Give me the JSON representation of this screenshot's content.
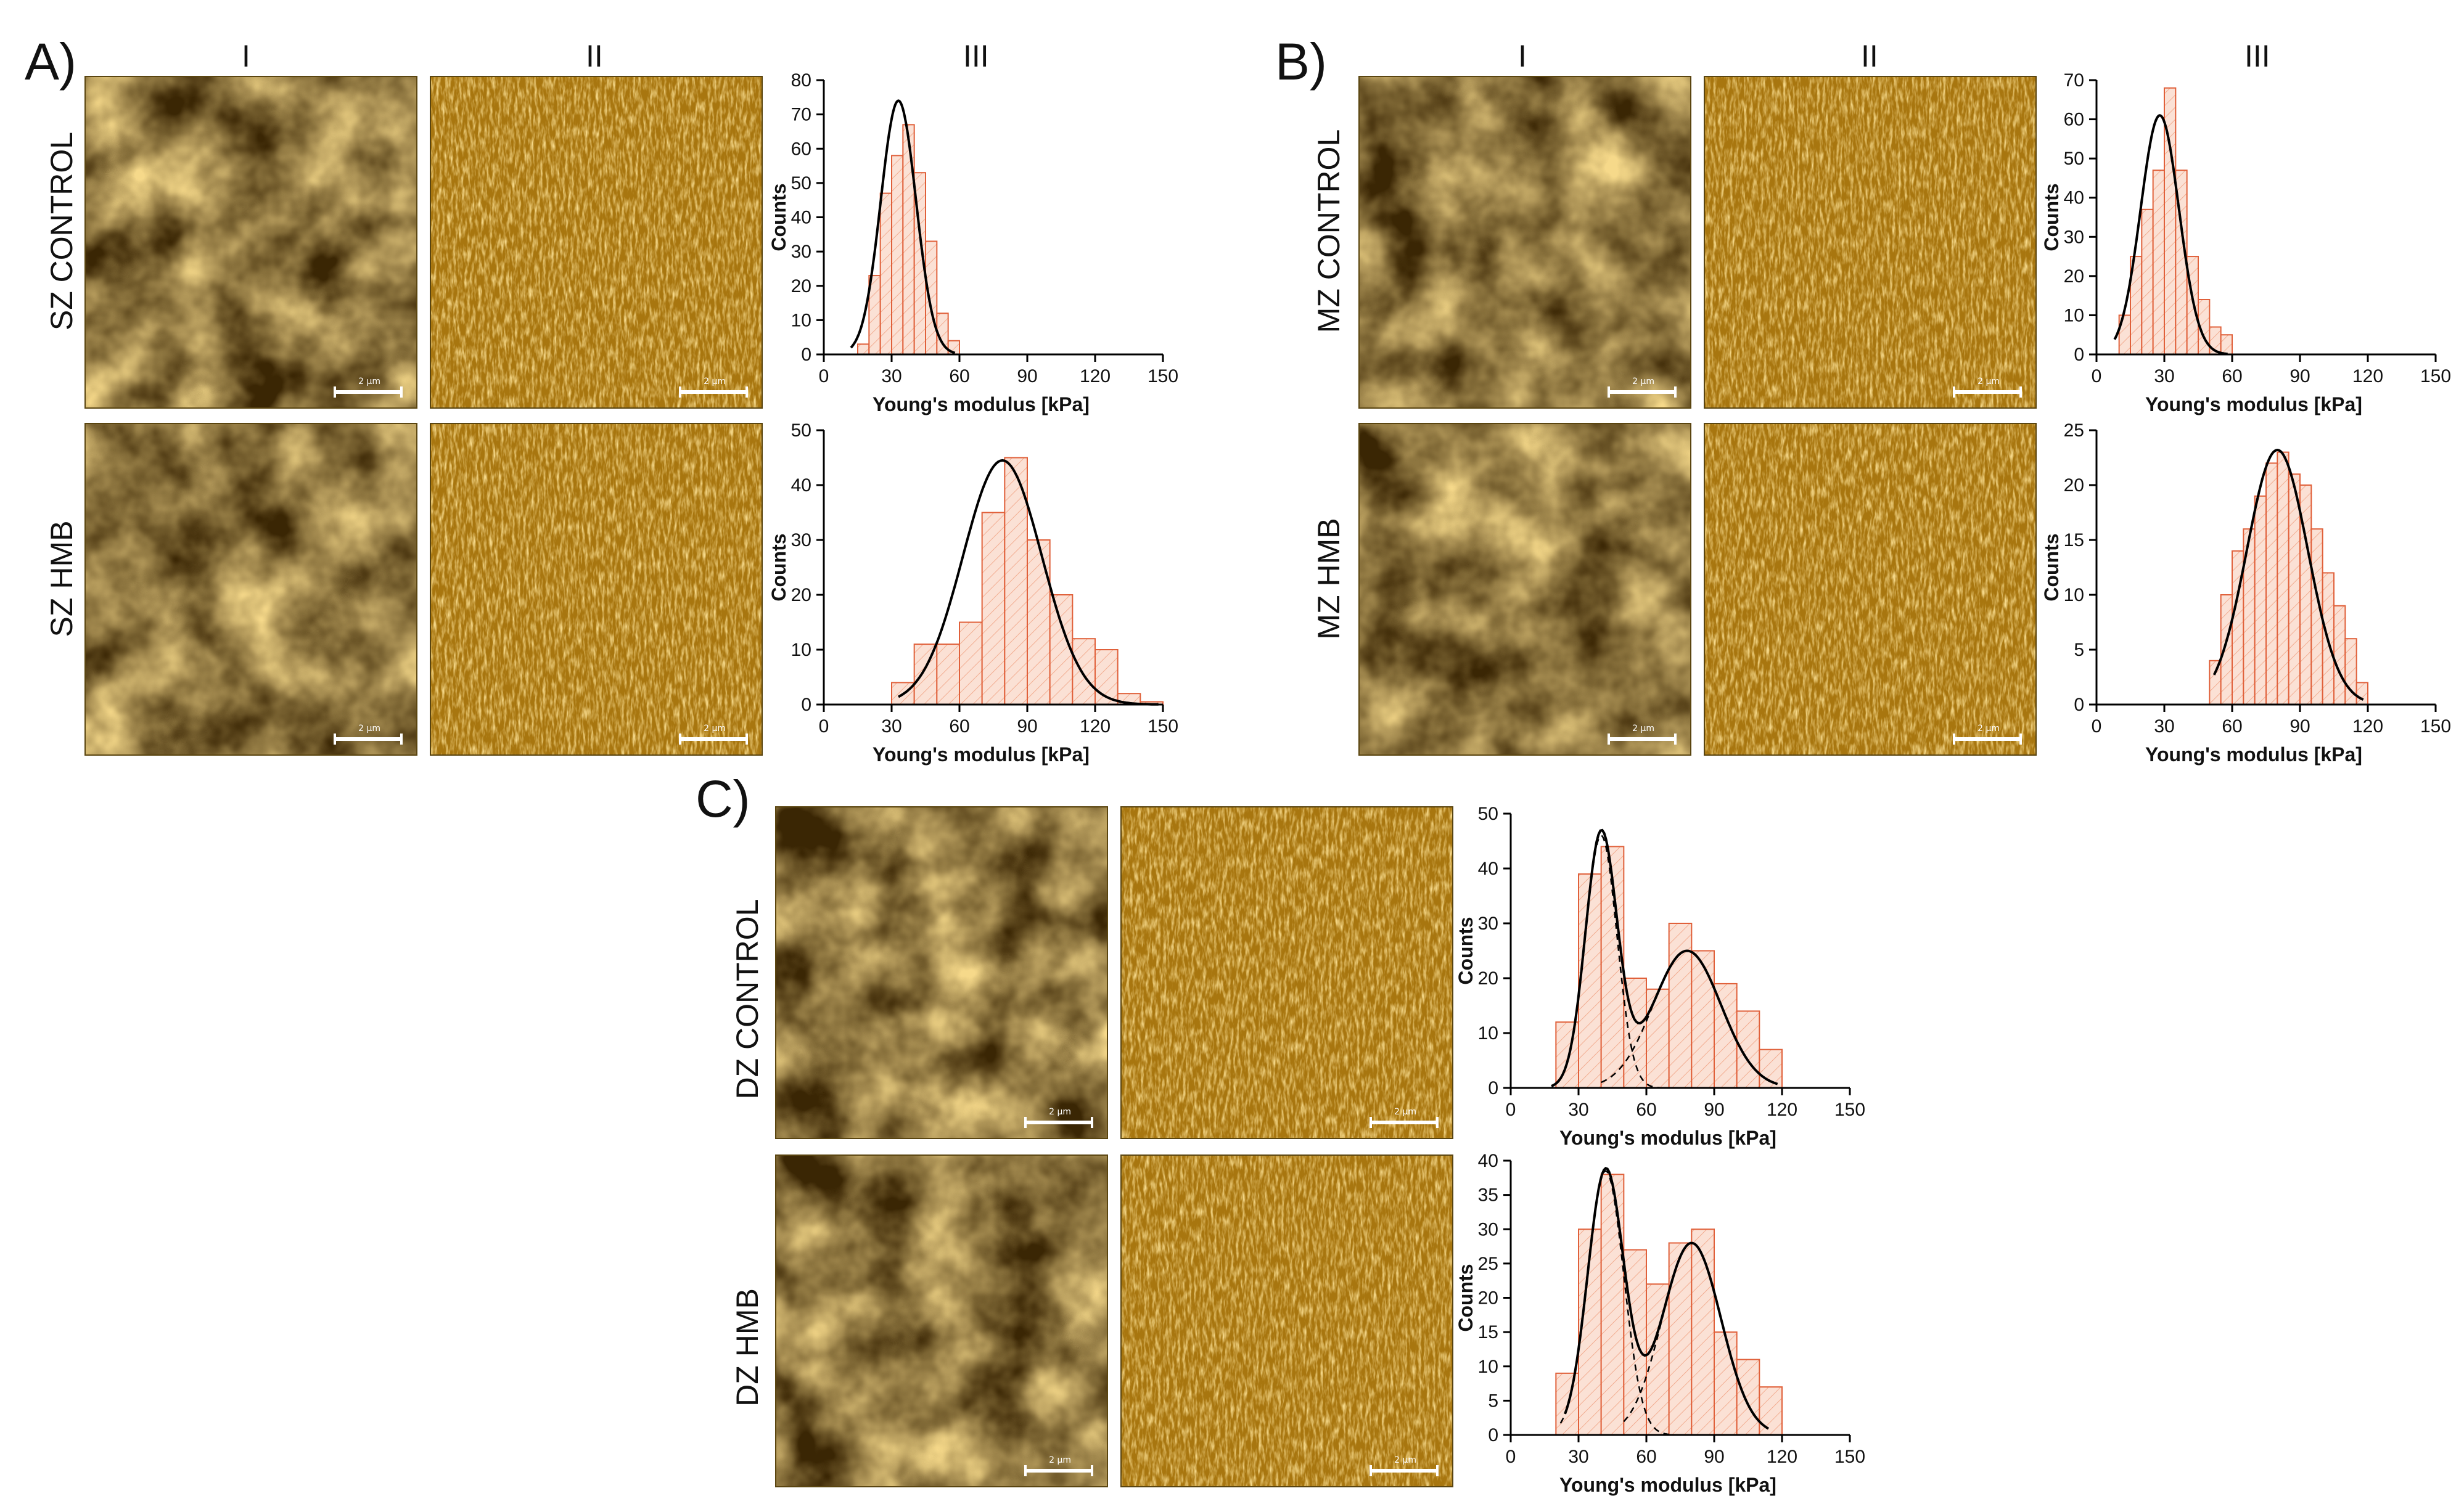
{
  "panels": {
    "A": {
      "letter": "A)",
      "cols": [
        "I",
        "II",
        "III"
      ],
      "rows": [
        "SZ CONTROL",
        "SZ HMB"
      ]
    },
    "B": {
      "letter": "B)",
      "cols": [
        "I",
        "II",
        "III"
      ],
      "rows": [
        "MZ CONTROL",
        "MZ HMB"
      ]
    },
    "C": {
      "letter": "C)",
      "rows": [
        "DZ CONTROL",
        "DZ HMB"
      ]
    }
  },
  "scale_label": "2 µm",
  "colors": {
    "bar_fill": "#fbe1d5",
    "bar_edge": "#e0603a",
    "hatch": "#f0a080",
    "fit": "#000000",
    "afm_dark": "#3a2604",
    "afm_mid": "#a8760f",
    "afm_light": "#f6d98a"
  },
  "chart_data": [
    {
      "id": "sz-control",
      "type": "bar",
      "xlabel": "Young's modulus [kPa]",
      "ylabel": "Counts",
      "xlim": [
        0,
        150
      ],
      "ylim": [
        0,
        80
      ],
      "xticks": [
        0,
        30,
        60,
        90,
        120,
        150
      ],
      "yticks": [
        0,
        10,
        20,
        30,
        40,
        50,
        60,
        70,
        80
      ],
      "bin_width": 5,
      "bins": [
        [
          15,
          3
        ],
        [
          20,
          23
        ],
        [
          25,
          47
        ],
        [
          30,
          58
        ],
        [
          35,
          67
        ],
        [
          40,
          53
        ],
        [
          45,
          33
        ],
        [
          50,
          12
        ],
        [
          55,
          4
        ]
      ],
      "fits": [
        {
          "style": "solid",
          "mean": 33,
          "sd": 7.8,
          "amp": 74,
          "xmin": 12,
          "xmax": 58
        }
      ]
    },
    {
      "id": "sz-hmb",
      "type": "bar",
      "xlabel": "Young's modulus [kPa]",
      "ylabel": "Counts",
      "xlim": [
        0,
        150
      ],
      "ylim": [
        0,
        50
      ],
      "xticks": [
        0,
        30,
        60,
        90,
        120,
        150
      ],
      "yticks": [
        0,
        10,
        20,
        30,
        40,
        50
      ],
      "bin_width": 10,
      "bins": [
        [
          30,
          4
        ],
        [
          40,
          11
        ],
        [
          50,
          11
        ],
        [
          60,
          15
        ],
        [
          70,
          35
        ],
        [
          80,
          45
        ],
        [
          90,
          30
        ],
        [
          100,
          20
        ],
        [
          110,
          12
        ],
        [
          120,
          10
        ],
        [
          130,
          2
        ],
        [
          140,
          0.5
        ]
      ],
      "fits": [
        {
          "style": "solid",
          "mean": 79,
          "sd": 17.5,
          "amp": 44.5,
          "xmin": 33,
          "xmax": 148
        }
      ]
    },
    {
      "id": "mz-control",
      "type": "bar",
      "xlabel": "Young's modulus [kPa]",
      "ylabel": "Counts",
      "xlim": [
        0,
        150
      ],
      "ylim": [
        0,
        70
      ],
      "xticks": [
        0,
        30,
        60,
        90,
        120,
        150
      ],
      "yticks": [
        0,
        10,
        20,
        30,
        40,
        50,
        60,
        70
      ],
      "bin_width": 5,
      "bins": [
        [
          10,
          10
        ],
        [
          15,
          25
        ],
        [
          20,
          37
        ],
        [
          25,
          47
        ],
        [
          30,
          68
        ],
        [
          35,
          47
        ],
        [
          40,
          25
        ],
        [
          45,
          14
        ],
        [
          50,
          7
        ],
        [
          55,
          5
        ]
      ],
      "fits": [
        {
          "style": "solid",
          "mean": 28,
          "sd": 8.5,
          "amp": 61,
          "xmin": 8,
          "xmax": 58
        }
      ]
    },
    {
      "id": "mz-hmb",
      "type": "bar",
      "xlabel": "Young's modulus [kPa]",
      "ylabel": "Counts",
      "xlim": [
        0,
        150
      ],
      "ylim": [
        0,
        25
      ],
      "xticks": [
        0,
        30,
        60,
        90,
        120,
        150
      ],
      "yticks": [
        0,
        5,
        10,
        15,
        20,
        25
      ],
      "bin_width": 5,
      "bins": [
        [
          50,
          4
        ],
        [
          55,
          10
        ],
        [
          60,
          14
        ],
        [
          65,
          16
        ],
        [
          70,
          19
        ],
        [
          75,
          22
        ],
        [
          80,
          23
        ],
        [
          85,
          21
        ],
        [
          90,
          20
        ],
        [
          95,
          16
        ],
        [
          100,
          12
        ],
        [
          105,
          9
        ],
        [
          110,
          6
        ],
        [
          115,
          2
        ]
      ],
      "fits": [
        {
          "style": "solid",
          "mean": 80,
          "sd": 13.5,
          "amp": 23.2,
          "xmin": 52,
          "xmax": 118
        }
      ]
    },
    {
      "id": "dz-control",
      "type": "bar",
      "xlabel": "Young's modulus [kPa]",
      "ylabel": "Counts",
      "xlim": [
        0,
        150
      ],
      "ylim": [
        0,
        50
      ],
      "xticks": [
        0,
        30,
        60,
        90,
        120,
        150
      ],
      "yticks": [
        0,
        10,
        20,
        30,
        40,
        50
      ],
      "bin_width": 10,
      "bins": [
        [
          20,
          12
        ],
        [
          30,
          39
        ],
        [
          40,
          44
        ],
        [
          50,
          20
        ],
        [
          60,
          18
        ],
        [
          70,
          30
        ],
        [
          80,
          25
        ],
        [
          90,
          19
        ],
        [
          100,
          14
        ],
        [
          110,
          7
        ]
      ],
      "fits": [
        {
          "style": "solid",
          "components": [
            {
              "mean": 40,
              "sd": 7,
              "amp": 46
            },
            {
              "mean": 78,
              "sd": 15,
              "amp": 25
            }
          ],
          "xmin": 18,
          "xmax": 118
        },
        {
          "style": "dashed",
          "mean": 40,
          "sd": 7,
          "amp": 46,
          "xmin": 20,
          "xmax": 66
        },
        {
          "style": "dashed",
          "mean": 78,
          "sd": 15,
          "amp": 25,
          "xmin": 40,
          "xmax": 118
        }
      ]
    },
    {
      "id": "dz-hmb",
      "type": "bar",
      "xlabel": "Young's modulus [kPa]",
      "ylabel": "Counts",
      "xlim": [
        0,
        150
      ],
      "ylim": [
        0,
        40
      ],
      "xticks": [
        0,
        30,
        60,
        90,
        120,
        150
      ],
      "yticks": [
        0,
        5,
        10,
        15,
        20,
        25,
        30,
        35,
        40
      ],
      "bin_width": 10,
      "bins": [
        [
          20,
          9
        ],
        [
          30,
          30
        ],
        [
          40,
          38
        ],
        [
          50,
          27
        ],
        [
          60,
          22
        ],
        [
          70,
          28
        ],
        [
          80,
          30
        ],
        [
          90,
          15
        ],
        [
          100,
          11
        ],
        [
          110,
          7
        ]
      ],
      "fits": [
        {
          "style": "solid",
          "components": [
            {
              "mean": 42,
              "sd": 8,
              "amp": 38.5
            },
            {
              "mean": 80,
              "sd": 13,
              "amp": 28
            }
          ],
          "xmin": 24,
          "xmax": 114
        },
        {
          "style": "dashed",
          "mean": 42,
          "sd": 8,
          "amp": 38.5,
          "xmin": 22,
          "xmax": 70
        },
        {
          "style": "dashed",
          "mean": 80,
          "sd": 13,
          "amp": 28,
          "xmin": 50,
          "xmax": 114
        }
      ]
    }
  ]
}
